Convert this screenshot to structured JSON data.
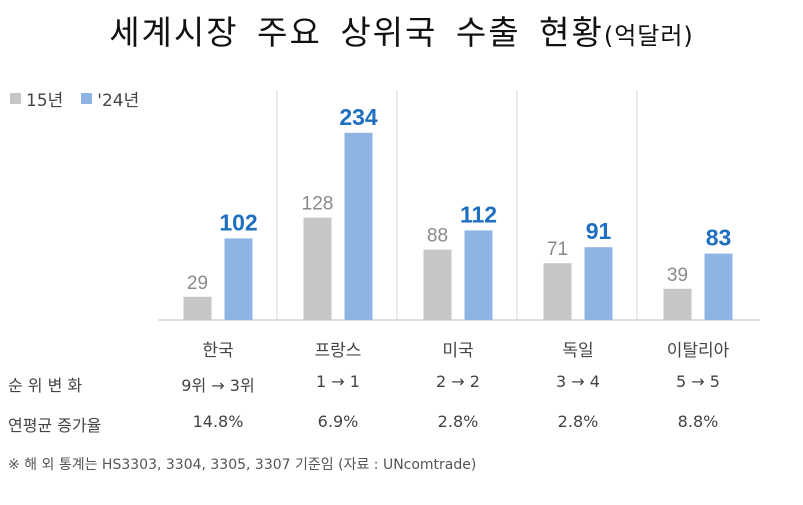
{
  "header": {
    "title": "세계시장 주요 상위국 수출 현황",
    "unit": "(억달러)"
  },
  "colors": {
    "prev": "#c6c6c6",
    "curr": "#8eb4e3",
    "curr_label": "#1f6fc1",
    "prev_label": "#8a8a8a"
  },
  "chart_data": {
    "type": "bar",
    "title": "세계시장 주요 상위국 수출 현황",
    "unit": "(억달러)",
    "categories": [
      "한국",
      "프랑스",
      "미국",
      "독일",
      "이탈리아"
    ],
    "series": [
      {
        "name": "15년",
        "values": [
          29,
          128,
          88,
          71,
          39
        ]
      },
      {
        "name": "'24년",
        "values": [
          102,
          234,
          112,
          91,
          83
        ]
      }
    ],
    "ylim": [
      0,
      250
    ],
    "grid": false,
    "legend": "top-left"
  },
  "table": {
    "rank_label": "순 위 변 화",
    "ranks": [
      "9위 → 3위",
      "1 → 1",
      "2 → 2",
      "3 → 4",
      "5 → 5"
    ],
    "cagr_label": "연평균 증가율",
    "cagr": [
      "14.8%",
      "6.9%",
      "2.8%",
      "2.8%",
      "8.8%"
    ]
  },
  "footnote": "※ 해 외 통계는 HS3303, 3304, 3305, 3307 기준임 (자료 : UNcomtrade)"
}
